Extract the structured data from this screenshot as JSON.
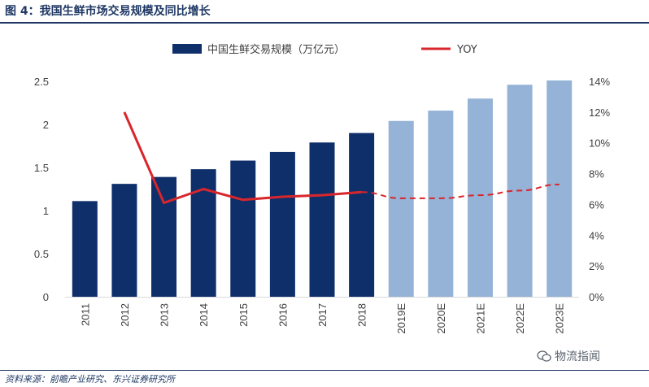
{
  "figure_title": "图 4：我国生鲜市场交易规模及同比增长",
  "source": "资料来源：前瞻产业研究、东兴证券研究所",
  "watermark": "物流指闻",
  "colors": {
    "actual_bar": "#0f2f6b",
    "forecast_bar": "#95b3d7",
    "yoy_line": "#d9262b",
    "title": "#1f3864"
  },
  "chart_data": {
    "type": "bar",
    "combo": "bar + line (secondary axis)",
    "categories": [
      "2011",
      "2012",
      "2013",
      "2014",
      "2015",
      "2016",
      "2017",
      "2018",
      "2019E",
      "2020E",
      "2021E",
      "2022E",
      "2023E"
    ],
    "series": [
      {
        "name": "中国生鲜交易规模（万亿元）",
        "type": "bar",
        "axis": "left",
        "values": [
          1.11,
          1.31,
          1.39,
          1.48,
          1.58,
          1.68,
          1.79,
          1.9,
          2.04,
          2.16,
          2.3,
          2.46,
          2.51
        ],
        "forecast_from_index": 8
      },
      {
        "name": "YOY",
        "type": "line",
        "axis": "right",
        "values": [
          null,
          0.12,
          0.061,
          0.07,
          0.063,
          0.065,
          0.066,
          0.068,
          0.064,
          0.064,
          0.066,
          0.069,
          0.073
        ],
        "dashed_from_index": 7
      }
    ],
    "y_left": {
      "ylim": [
        0,
        2.5
      ],
      "ticks": [
        "0",
        "0.5",
        "1",
        "1.5",
        "2",
        "2.5"
      ]
    },
    "y_right": {
      "ylim": [
        0,
        0.14
      ],
      "ticks": [
        "0%",
        "2%",
        "4%",
        "6%",
        "8%",
        "10%",
        "12%",
        "14%"
      ]
    },
    "grid": false,
    "legend_position": "top"
  }
}
